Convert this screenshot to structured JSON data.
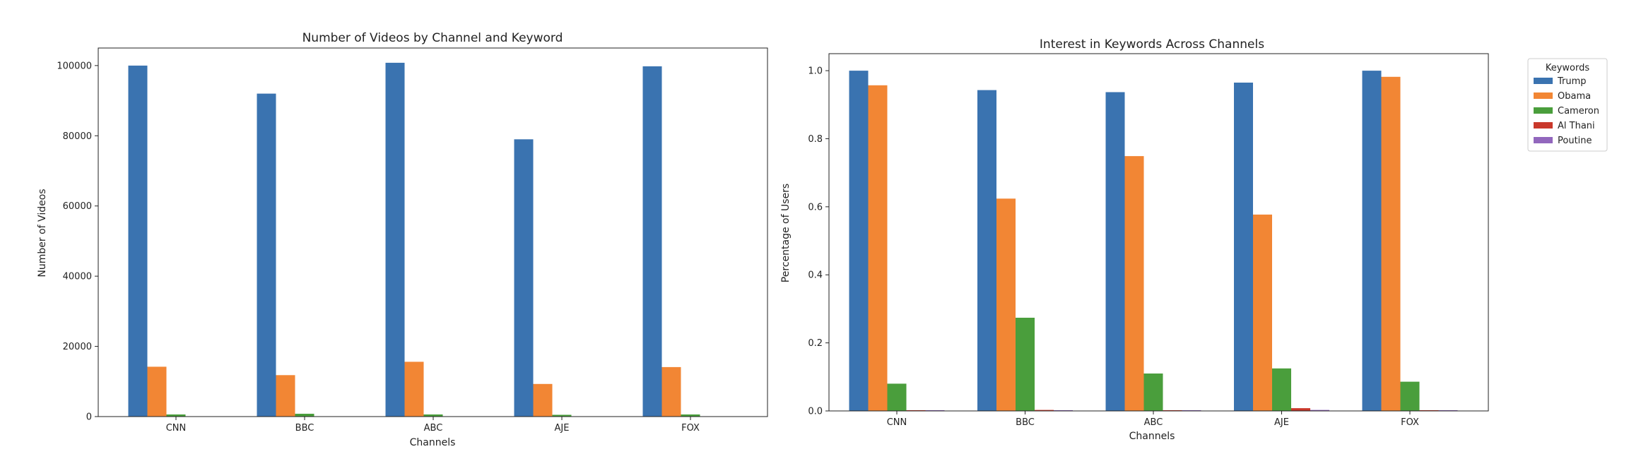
{
  "colors": {
    "Trump": "#3a73b0",
    "Obama": "#f28634",
    "Cameron": "#4a9e3c",
    "Al Thani": "#c9382b",
    "Poutine": "#9267bd"
  },
  "chart_data": [
    {
      "type": "bar",
      "title": "Number of Videos by Channel and Keyword",
      "xlabel": "Channels",
      "ylabel": "Number of Videos",
      "categories": [
        "CNN",
        "BBC",
        "ABC",
        "AJE",
        "FOX"
      ],
      "ylim": [
        0,
        105000
      ],
      "yticks": [
        0,
        20000,
        40000,
        60000,
        80000,
        100000
      ],
      "grid": false,
      "series": [
        {
          "name": "Trump",
          "values": [
            100000,
            92000,
            100800,
            79000,
            99800
          ]
        },
        {
          "name": "Obama",
          "values": [
            14200,
            11800,
            15600,
            9300,
            14100
          ]
        },
        {
          "name": "Cameron",
          "values": [
            600,
            800,
            600,
            500,
            600
          ]
        },
        {
          "name": "Al Thani",
          "values": [
            0,
            0,
            0,
            0,
            0
          ]
        },
        {
          "name": "Poutine",
          "values": [
            0,
            0,
            0,
            0,
            0
          ]
        }
      ]
    },
    {
      "type": "bar",
      "title": "Interest in Keywords Across Channels",
      "xlabel": "Channels",
      "ylabel": "Percentage of Users",
      "categories": [
        "CNN",
        "BBC",
        "ABC",
        "AJE",
        "FOX"
      ],
      "ylim": [
        0,
        1.05
      ],
      "yticks": [
        "0.0",
        "0.2",
        "0.4",
        "0.6",
        "0.8",
        "1.0"
      ],
      "grid": false,
      "legend": {
        "title": "Keywords",
        "placement": "outside-top-right"
      },
      "series": [
        {
          "name": "Trump",
          "values": [
            1.0,
            0.943,
            0.937,
            0.965,
            1.0
          ]
        },
        {
          "name": "Obama",
          "values": [
            0.957,
            0.624,
            0.749,
            0.577,
            0.982
          ]
        },
        {
          "name": "Cameron",
          "values": [
            0.08,
            0.274,
            0.11,
            0.125,
            0.086
          ]
        },
        {
          "name": "Al Thani",
          "values": [
            0.002,
            0.003,
            0.002,
            0.008,
            0.002
          ]
        },
        {
          "name": "Poutine",
          "values": [
            0.002,
            0.002,
            0.002,
            0.003,
            0.002
          ]
        }
      ]
    }
  ]
}
